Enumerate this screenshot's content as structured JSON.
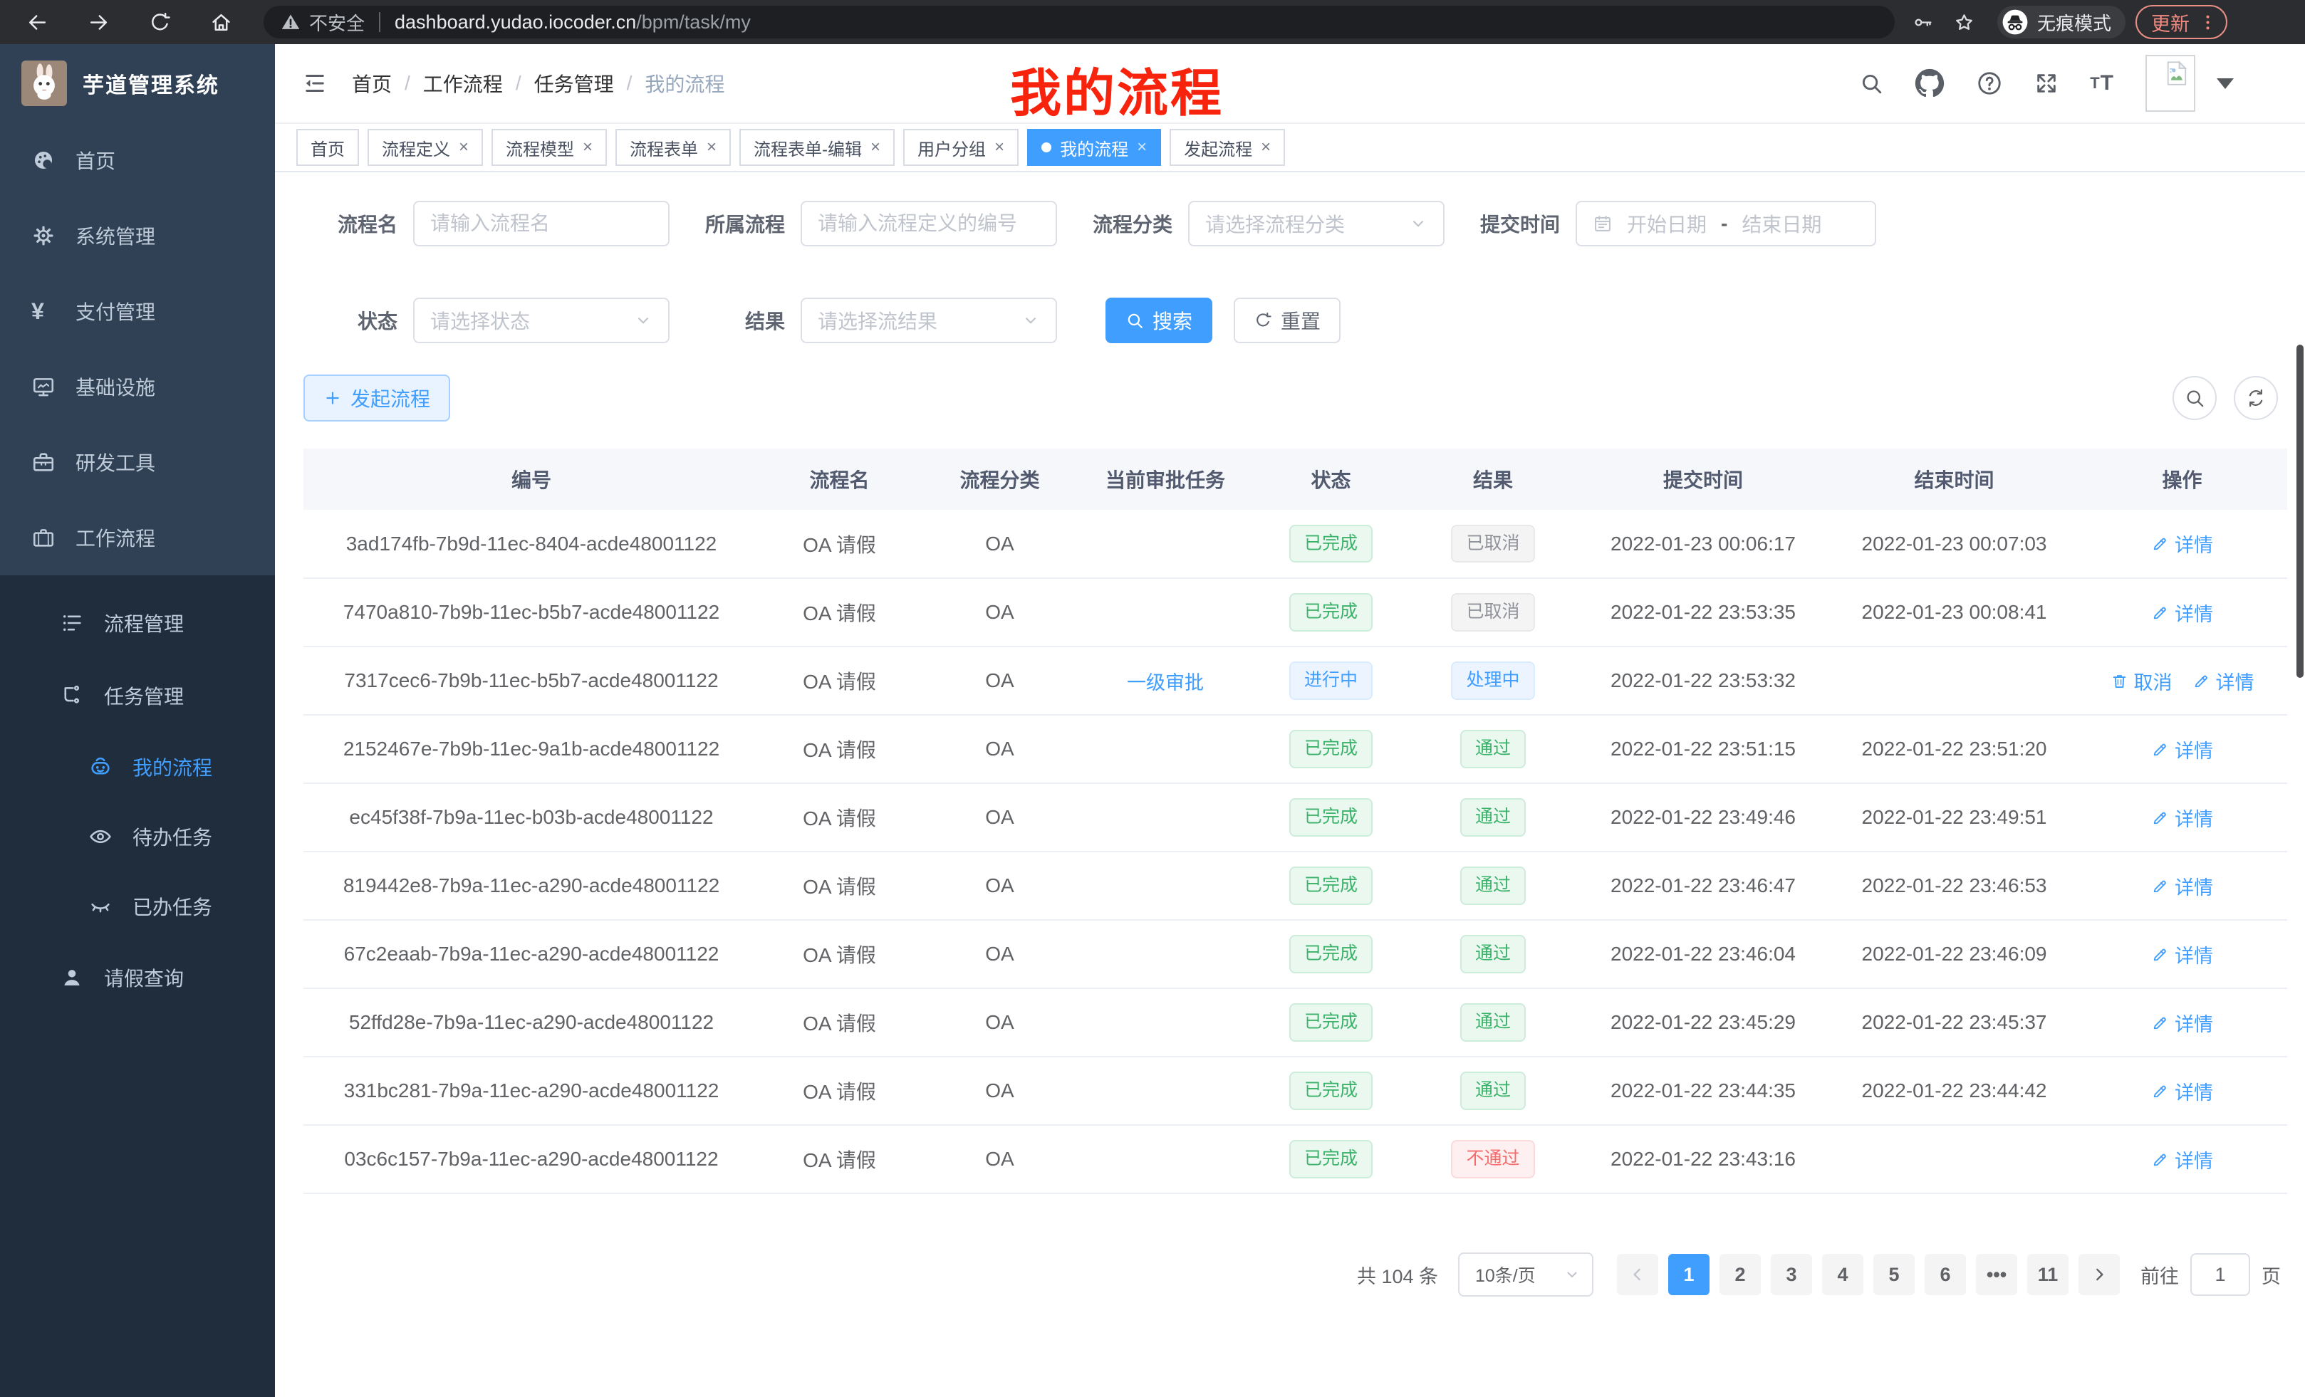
{
  "browser": {
    "security_label": "不安全",
    "url_host": "dashboard.yudao.iocoder.cn",
    "url_path": "/bpm/task/my",
    "incognito_label": "无痕模式",
    "update_label": "更新"
  },
  "annotation": {
    "text": "我的流程",
    "color": "#f7230c"
  },
  "sidebar": {
    "title": "芋道管理系统",
    "items": [
      {
        "key": "home",
        "label": "首页",
        "icon": "dashboard",
        "level": 1
      },
      {
        "key": "system",
        "label": "系统管理",
        "icon": "gear",
        "level": 1,
        "chevron": "down"
      },
      {
        "key": "payment",
        "label": "支付管理",
        "icon": "yen",
        "level": 1,
        "chevron": "down"
      },
      {
        "key": "infra",
        "label": "基础设施",
        "icon": "monitor",
        "level": 1,
        "chevron": "down"
      },
      {
        "key": "devtools",
        "label": "研发工具",
        "icon": "toolbox",
        "level": 1,
        "chevron": "down"
      },
      {
        "key": "workflow",
        "label": "工作流程",
        "icon": "briefcase",
        "level": 1,
        "chevron": "up"
      },
      {
        "key": "process-mgmt",
        "label": "流程管理",
        "icon": "list",
        "level": 2,
        "chevron": "down",
        "dark": true
      },
      {
        "key": "task-mgmt",
        "label": "任务管理",
        "icon": "tree",
        "level": 2,
        "chevron": "up",
        "dark": true
      },
      {
        "key": "my-process",
        "label": "我的流程",
        "icon": "robot",
        "level": 3,
        "active": true,
        "dark": true
      },
      {
        "key": "todo-tasks",
        "label": "待办任务",
        "icon": "eye",
        "level": 3,
        "dark": true
      },
      {
        "key": "done-tasks",
        "label": "已办任务",
        "icon": "eye-closed",
        "level": 3,
        "dark": true
      },
      {
        "key": "leave-query",
        "label": "请假查询",
        "icon": "user",
        "level": 2,
        "dark": true
      }
    ]
  },
  "header": {
    "breadcrumb": [
      "首页",
      "工作流程",
      "任务管理",
      "我的流程"
    ]
  },
  "tabs": [
    {
      "key": "home",
      "label": "首页",
      "closable": false
    },
    {
      "key": "process-def",
      "label": "流程定义",
      "closable": true
    },
    {
      "key": "process-model",
      "label": "流程模型",
      "closable": true
    },
    {
      "key": "process-form",
      "label": "流程表单",
      "closable": true
    },
    {
      "key": "process-form-edit",
      "label": "流程表单-编辑",
      "closable": true
    },
    {
      "key": "user-group",
      "label": "用户分组",
      "closable": true
    },
    {
      "key": "my-process",
      "label": "我的流程",
      "closable": true,
      "active": true
    },
    {
      "key": "start-process",
      "label": "发起流程",
      "closable": true
    }
  ],
  "filters": {
    "name": {
      "label": "流程名",
      "placeholder": "请输入流程名"
    },
    "process": {
      "label": "所属流程",
      "placeholder": "请输入流程定义的编号"
    },
    "category": {
      "label": "流程分类",
      "placeholder": "请选择流程分类"
    },
    "submit_time": {
      "label": "提交时间",
      "start_placeholder": "开始日期",
      "separator": "-",
      "end_placeholder": "结束日期"
    },
    "status": {
      "label": "状态",
      "placeholder": "请选择状态"
    },
    "result": {
      "label": "结果",
      "placeholder": "请选择流结果"
    },
    "search_label": "搜索",
    "reset_label": "重置"
  },
  "toolbar": {
    "create_label": "发起流程"
  },
  "table": {
    "columns": [
      "编号",
      "流程名",
      "流程分类",
      "当前审批任务",
      "状态",
      "结果",
      "提交时间",
      "结束时间",
      "操作"
    ],
    "rows": [
      {
        "id": "3ad174fb-7b9d-11ec-8404-acde48001122",
        "name": "OA 请假",
        "category": "OA",
        "current_task": "",
        "status": "已完成",
        "status_type": "success",
        "result": "已取消",
        "result_type": "info",
        "submit_time": "2022-01-23 00:06:17",
        "end_time": "2022-01-23 00:07:03",
        "actions": [
          {
            "label": "详情",
            "icon": "edit"
          }
        ]
      },
      {
        "id": "7470a810-7b9b-11ec-b5b7-acde48001122",
        "name": "OA 请假",
        "category": "OA",
        "current_task": "",
        "status": "已完成",
        "status_type": "success",
        "result": "已取消",
        "result_type": "info",
        "submit_time": "2022-01-22 23:53:35",
        "end_time": "2022-01-23 00:08:41",
        "actions": [
          {
            "label": "详情",
            "icon": "edit"
          }
        ]
      },
      {
        "id": "7317cec6-7b9b-11ec-b5b7-acde48001122",
        "name": "OA 请假",
        "category": "OA",
        "current_task": "一级审批",
        "status": "进行中",
        "status_type": "primary",
        "result": "处理中",
        "result_type": "primary",
        "submit_time": "2022-01-22 23:53:32",
        "end_time": "",
        "actions": [
          {
            "label": "取消",
            "icon": "trash"
          },
          {
            "label": "详情",
            "icon": "edit"
          }
        ]
      },
      {
        "id": "2152467e-7b9b-11ec-9a1b-acde48001122",
        "name": "OA 请假",
        "category": "OA",
        "current_task": "",
        "status": "已完成",
        "status_type": "success",
        "result": "通过",
        "result_type": "success",
        "submit_time": "2022-01-22 23:51:15",
        "end_time": "2022-01-22 23:51:20",
        "actions": [
          {
            "label": "详情",
            "icon": "edit"
          }
        ]
      },
      {
        "id": "ec45f38f-7b9a-11ec-b03b-acde48001122",
        "name": "OA 请假",
        "category": "OA",
        "current_task": "",
        "status": "已完成",
        "status_type": "success",
        "result": "通过",
        "result_type": "success",
        "submit_time": "2022-01-22 23:49:46",
        "end_time": "2022-01-22 23:49:51",
        "actions": [
          {
            "label": "详情",
            "icon": "edit"
          }
        ]
      },
      {
        "id": "819442e8-7b9a-11ec-a290-acde48001122",
        "name": "OA 请假",
        "category": "OA",
        "current_task": "",
        "status": "已完成",
        "status_type": "success",
        "result": "通过",
        "result_type": "success",
        "submit_time": "2022-01-22 23:46:47",
        "end_time": "2022-01-22 23:46:53",
        "actions": [
          {
            "label": "详情",
            "icon": "edit"
          }
        ]
      },
      {
        "id": "67c2eaab-7b9a-11ec-a290-acde48001122",
        "name": "OA 请假",
        "category": "OA",
        "current_task": "",
        "status": "已完成",
        "status_type": "success",
        "result": "通过",
        "result_type": "success",
        "submit_time": "2022-01-22 23:46:04",
        "end_time": "2022-01-22 23:46:09",
        "actions": [
          {
            "label": "详情",
            "icon": "edit"
          }
        ]
      },
      {
        "id": "52ffd28e-7b9a-11ec-a290-acde48001122",
        "name": "OA 请假",
        "category": "OA",
        "current_task": "",
        "status": "已完成",
        "status_type": "success",
        "result": "通过",
        "result_type": "success",
        "submit_time": "2022-01-22 23:45:29",
        "end_time": "2022-01-22 23:45:37",
        "actions": [
          {
            "label": "详情",
            "icon": "edit"
          }
        ]
      },
      {
        "id": "331bc281-7b9a-11ec-a290-acde48001122",
        "name": "OA 请假",
        "category": "OA",
        "current_task": "",
        "status": "已完成",
        "status_type": "success",
        "result": "通过",
        "result_type": "success",
        "submit_time": "2022-01-22 23:44:35",
        "end_time": "2022-01-22 23:44:42",
        "actions": [
          {
            "label": "详情",
            "icon": "edit"
          }
        ]
      },
      {
        "id": "03c6c157-7b9a-11ec-a290-acde48001122",
        "name": "OA 请假",
        "category": "OA",
        "current_task": "",
        "status": "已完成",
        "status_type": "success",
        "result": "不通过",
        "result_type": "danger",
        "submit_time": "2022-01-22 23:43:16",
        "end_time": "",
        "actions": [
          {
            "label": "详情",
            "icon": "edit"
          }
        ]
      }
    ]
  },
  "pagination": {
    "total_label": "共 104 条",
    "page_size_label": "10条/页",
    "pages": [
      {
        "label": "1",
        "active": true
      },
      {
        "label": "2"
      },
      {
        "label": "3"
      },
      {
        "label": "4"
      },
      {
        "label": "5"
      },
      {
        "label": "6"
      },
      {
        "label": "•••",
        "ellipsis": true
      },
      {
        "label": "11"
      }
    ],
    "jump_prefix": "前往",
    "jump_value": "1",
    "jump_suffix": "页"
  },
  "colors": {
    "primary": "#409eff",
    "sidebar_bg": "#304156",
    "submenu_bg": "#1f2d3d",
    "success_text": "#3bb269",
    "info_text": "#909399",
    "danger_text": "#f56c6c",
    "annotation_red": "#f7230c"
  }
}
